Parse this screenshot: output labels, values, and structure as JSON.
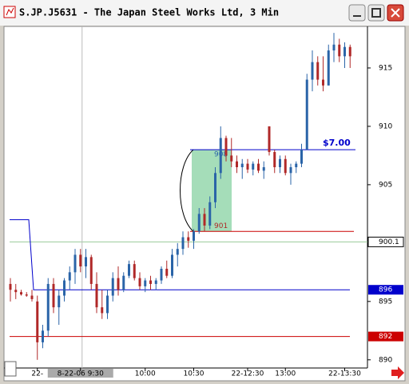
{
  "window": {
    "title": "S.JP.J5631 - The Japan Steel Works Ltd, 3 Min"
  },
  "chart_data": {
    "type": "candlestick",
    "categories": [
      null,
      null,
      null,
      null,
      null,
      "22-",
      null,
      null,
      null,
      null,
      null,
      null,
      null,
      "8-22-06 9:30",
      null,
      null,
      null,
      null,
      null,
      null,
      null,
      null,
      null,
      null,
      null,
      "10:00",
      null,
      null,
      null,
      null,
      null,
      null,
      null,
      null,
      "10:30",
      null,
      null,
      null,
      null,
      null,
      null,
      null,
      null,
      null,
      "22-12:30",
      null,
      null,
      null,
      null,
      null,
      null,
      "13:00",
      null,
      null,
      null,
      null,
      null,
      null,
      null,
      null,
      null,
      null,
      "22-13:30",
      null
    ],
    "open": [
      896.5,
      896,
      895.8,
      895.6,
      895.5,
      895,
      891.5,
      892.5,
      896.5,
      894.5,
      895.5,
      896.8,
      897.5,
      899,
      898,
      898.8,
      896.5,
      894.5,
      894,
      895.5,
      897,
      896,
      897.2,
      898.2,
      897,
      896.3,
      896.8,
      896.5,
      896.8,
      897.8,
      897.2,
      899,
      899.5,
      900.5,
      900.2,
      901,
      902.5,
      901.5,
      903.5,
      906,
      909,
      907.5,
      907,
      906.5,
      906.8,
      906.3,
      906.8,
      906.2,
      910,
      907.8,
      906.5,
      907.2,
      906,
      906.5,
      906.8,
      908,
      914,
      915.5,
      914,
      913.5,
      916.5,
      917,
      916,
      916.8
    ],
    "high": [
      897,
      896.5,
      896,
      895.8,
      896,
      895.5,
      893,
      897,
      897,
      896,
      897,
      898,
      899.5,
      899.5,
      899.5,
      899,
      897.5,
      896,
      896,
      897.5,
      898,
      897.5,
      898.5,
      898.5,
      897.5,
      897,
      897.2,
      897,
      898,
      898.5,
      899.5,
      900,
      901,
      901,
      901.2,
      903,
      903,
      904,
      906.5,
      910,
      909.2,
      909,
      907.5,
      907.2,
      907.2,
      907,
      907.2,
      907,
      910,
      908,
      907.5,
      907.5,
      906.8,
      907,
      908.5,
      914.5,
      916.5,
      916,
      916,
      917,
      918,
      917.5,
      917.2,
      917
    ],
    "low": [
      895,
      895.2,
      895.5,
      895.4,
      895,
      890,
      891,
      892,
      894,
      893,
      895,
      896,
      896.5,
      897.5,
      897,
      896,
      894,
      893.5,
      893.5,
      895,
      895.5,
      895.8,
      897,
      896.8,
      896,
      895.8,
      896,
      896,
      896.5,
      897,
      897,
      898,
      899,
      899.6,
      899.5,
      900.8,
      901,
      901.2,
      903,
      905.5,
      907,
      906.5,
      906,
      905.5,
      906,
      905.8,
      906,
      905.5,
      907.5,
      906,
      906,
      905.8,
      905,
      906,
      906.5,
      908,
      913,
      913.5,
      913,
      913.5,
      915.5,
      915.5,
      915,
      915
    ],
    "close": [
      896,
      895.8,
      895.6,
      895.5,
      895.2,
      891.5,
      892.5,
      896.5,
      894.5,
      895.5,
      896.8,
      897.5,
      899,
      898,
      898.8,
      896.5,
      894.5,
      894,
      895.5,
      897,
      896,
      897.2,
      898.2,
      897,
      896.3,
      896.8,
      896.5,
      896.8,
      897.8,
      897.2,
      899,
      899.5,
      900.5,
      900.2,
      901,
      902.5,
      901.5,
      903.5,
      906,
      909,
      907.5,
      907,
      906.5,
      906.8,
      906.3,
      906.8,
      906.2,
      906.5,
      907.8,
      906.5,
      907.2,
      906,
      906.5,
      906.8,
      908,
      914,
      915.5,
      914,
      913.5,
      916.5,
      917,
      916,
      916.8,
      916
    ],
    "up_color": "#2a64a8",
    "down_color": "#b02828",
    "ylim": [
      889.3,
      918.56
    ],
    "yticks": [
      890,
      895,
      905,
      910,
      915
    ],
    "crosshair": {
      "at": "8-22-06 9:30",
      "price": 900.1
    },
    "levels": [
      {
        "value": 896,
        "prior_value": 902,
        "color": "#0000cc"
      },
      {
        "value": 892,
        "color": "#cc0000"
      }
    ],
    "measure": {
      "top": 908,
      "bottom": 901,
      "label": "$7.00",
      "top_color": "#0000cc",
      "bottom_color": "#cc0000"
    }
  }
}
